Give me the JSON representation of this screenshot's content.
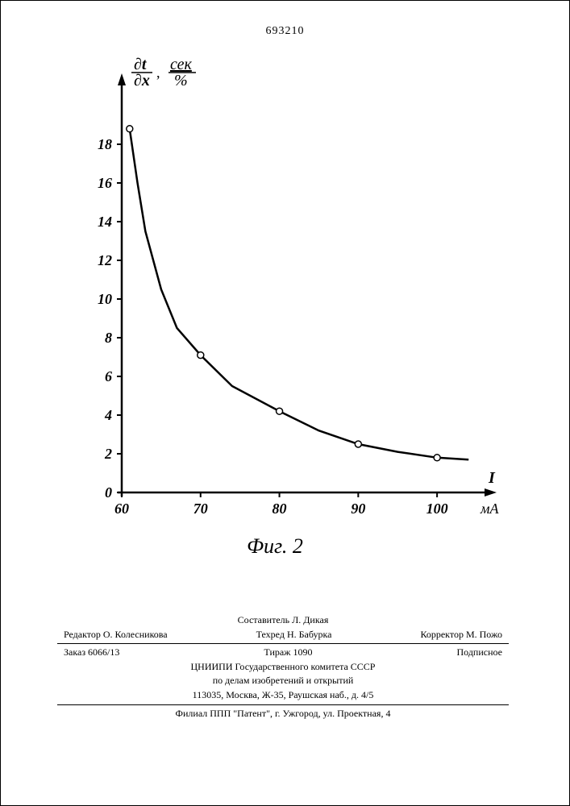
{
  "doc_number": "693210",
  "chart": {
    "type": "line",
    "y_axis": {
      "label_top": "∂t",
      "label_bottom": "∂x",
      "unit_top": "сек",
      "unit_bottom": "%",
      "ticks": [
        0,
        2,
        4,
        6,
        8,
        10,
        12,
        14,
        16,
        18
      ],
      "ylim": [
        0,
        20
      ]
    },
    "x_axis": {
      "label": "I",
      "unit": "мА",
      "ticks": [
        60,
        70,
        80,
        90,
        100
      ],
      "xlim": [
        60,
        105
      ]
    },
    "curve_points": [
      {
        "x": 61,
        "y": 18.8,
        "marker": true
      },
      {
        "x": 62,
        "y": 16.0,
        "marker": false
      },
      {
        "x": 63,
        "y": 13.5,
        "marker": false
      },
      {
        "x": 65,
        "y": 10.5,
        "marker": false
      },
      {
        "x": 67,
        "y": 8.5,
        "marker": false
      },
      {
        "x": 70,
        "y": 7.1,
        "marker": true
      },
      {
        "x": 74,
        "y": 5.5,
        "marker": false
      },
      {
        "x": 80,
        "y": 4.2,
        "marker": true
      },
      {
        "x": 85,
        "y": 3.2,
        "marker": false
      },
      {
        "x": 90,
        "y": 2.5,
        "marker": true
      },
      {
        "x": 95,
        "y": 2.1,
        "marker": false
      },
      {
        "x": 100,
        "y": 1.8,
        "marker": true
      },
      {
        "x": 104,
        "y": 1.7,
        "marker": false
      }
    ],
    "style": {
      "line_color": "#000000",
      "line_width": 2.5,
      "marker_type": "circle",
      "marker_size": 4,
      "marker_fill": "#ffffff",
      "marker_stroke": "#000000",
      "axis_color": "#000000",
      "axis_width": 2.5,
      "tick_fontsize": 18,
      "label_fontsize": 20,
      "background": "#ffffff"
    },
    "caption": "Фиг. 2"
  },
  "footer": {
    "compiler": "Составитель Л. Дикая",
    "editor": "Редактор О. Колесникова",
    "techred": "Техред Н. Бабурка",
    "corrector": "Корректор М. Пожо",
    "order": "Заказ 6066/13",
    "tirage": "Тираж 1090",
    "subscription": "Подписное",
    "org1": "ЦНИИПИ Государственного комитета СССР",
    "org2": "по делам изобретений и открытий",
    "address1": "113035, Москва, Ж-35, Раушская наб., д. 4/5",
    "address2": "Филиал ППП \"Патент\", г. Ужгород, ул. Проектная, 4"
  }
}
